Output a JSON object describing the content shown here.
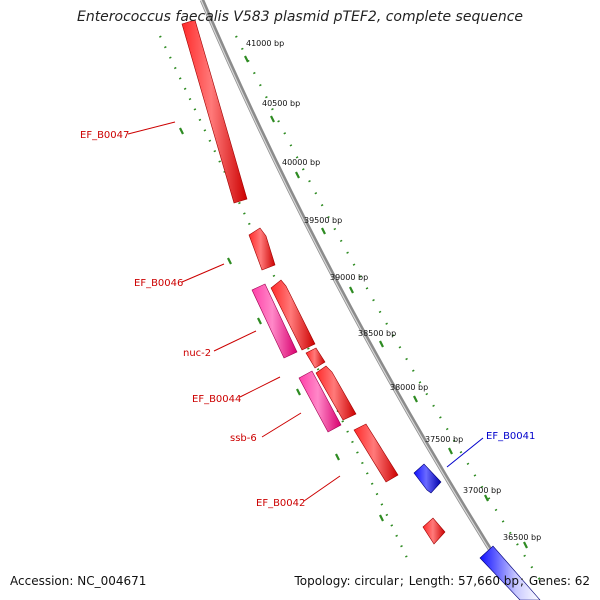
{
  "title": "Enterococcus faecalis V583 plasmid pTEF2, complete sequence",
  "footer": {
    "accession_label": "Accession:",
    "accession": "NC_004671",
    "topology_label": "Topology:",
    "topology": "circular",
    "length_label": "Length:",
    "length": "57,660 bp",
    "genes_label": "Genes:",
    "genes": "62"
  },
  "colors": {
    "backbone": "#8c8c8c",
    "forward_gene": "#ff0000",
    "other_gene": "#ff2fa0",
    "reverse_gene": "#0000ee",
    "gc_ticks": "#2e8b22",
    "gene_label": "#cc0000",
    "reverse_label": "#0000cc"
  },
  "ruler": [
    "41000 bp",
    "40500 bp",
    "40000 bp",
    "39500 bp",
    "39000 bp",
    "38500 bp",
    "38000 bp",
    "37500 bp",
    "37000 bp",
    "36500 bp"
  ],
  "gene_labels": [
    {
      "id": "EF_B0047",
      "strand": "forward"
    },
    {
      "id": "EF_B0046",
      "strand": "forward"
    },
    {
      "id": "nuc-2",
      "strand": "forward"
    },
    {
      "id": "EF_B0044",
      "strand": "forward"
    },
    {
      "id": "ssb-6",
      "strand": "forward"
    },
    {
      "id": "EF_B0042",
      "strand": "forward"
    },
    {
      "id": "EF_B0041",
      "strand": "reverse"
    }
  ]
}
